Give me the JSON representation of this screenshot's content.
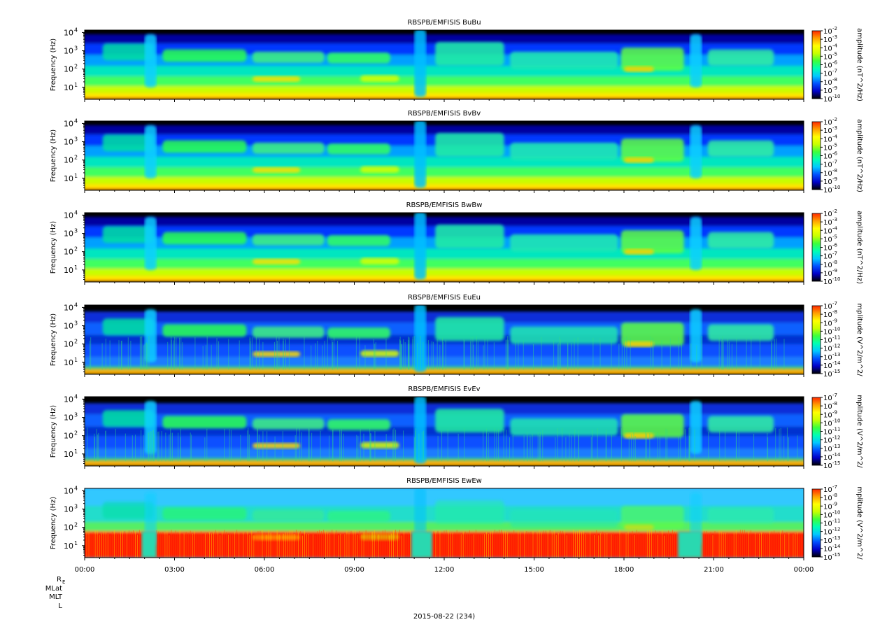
{
  "chart_data": {
    "type": "heatmap",
    "date_label": "2015-08-22 (234)",
    "x_axis": {
      "ticks": [
        "00:00",
        "03:00",
        "06:00",
        "09:00",
        "12:00",
        "15:00",
        "18:00",
        "21:00",
        "00:00"
      ],
      "range_hours": [
        0,
        24
      ],
      "ephemeris_labels": [
        "R",
        "E",
        "MLat",
        "MLT",
        "L"
      ]
    },
    "panels": [
      {
        "title": "RBSPB/EMFISIS  BuBu",
        "ylabel": "Frequency (Hz)",
        "yscale": "log",
        "yticks": [
          "10",
          "10",
          "10",
          "10"
        ],
        "ytick_exponents": [
          "1",
          "2",
          "3",
          "4"
        ],
        "colorbar_label": "amplitude (nT^2/Hz)",
        "colorbar_ticks": [
          "10",
          "10",
          "10",
          "10",
          "10",
          "10",
          "10",
          "10",
          "10"
        ],
        "colorbar_exponents": [
          "-2",
          "-3",
          "-4",
          "-5",
          "-6",
          "-7",
          "-8",
          "-9",
          "-10"
        ]
      },
      {
        "title": "RBSPB/EMFISIS  BvBv",
        "ylabel": "Frequency (Hz)",
        "yscale": "log",
        "yticks": [
          "10",
          "10",
          "10",
          "10"
        ],
        "ytick_exponents": [
          "1",
          "2",
          "3",
          "4"
        ],
        "colorbar_label": "amplitude (nT^2/Hz)",
        "colorbar_ticks": [
          "10",
          "10",
          "10",
          "10",
          "10",
          "10",
          "10",
          "10",
          "10"
        ],
        "colorbar_exponents": [
          "-2",
          "-3",
          "-4",
          "-5",
          "-6",
          "-7",
          "-8",
          "-9",
          "-10"
        ]
      },
      {
        "title": "RBSPB/EMFISIS  BwBw",
        "ylabel": "Frequency (Hz)",
        "yscale": "log",
        "yticks": [
          "10",
          "10",
          "10",
          "10"
        ],
        "ytick_exponents": [
          "1",
          "2",
          "3",
          "4"
        ],
        "colorbar_label": "amplitude (nT^2/Hz)",
        "colorbar_ticks": [
          "10",
          "10",
          "10",
          "10",
          "10",
          "10",
          "10",
          "10",
          "10"
        ],
        "colorbar_exponents": [
          "-2",
          "-3",
          "-4",
          "-5",
          "-6",
          "-7",
          "-8",
          "-9",
          "-10"
        ]
      },
      {
        "title": "RBSPB/EMFISIS  EuEu",
        "ylabel": "Frequency (Hz)",
        "yscale": "log",
        "yticks": [
          "10",
          "10",
          "10",
          "10"
        ],
        "ytick_exponents": [
          "1",
          "2",
          "3",
          "4"
        ],
        "colorbar_label": "mplitude (V^2/m^2/",
        "colorbar_ticks": [
          "10",
          "10",
          "10",
          "10",
          "10",
          "10",
          "10",
          "10",
          "10"
        ],
        "colorbar_exponents": [
          "-7",
          "-8",
          "-9",
          "-10",
          "-11",
          "-12",
          "-13",
          "-14",
          "-15"
        ]
      },
      {
        "title": "RBSPB/EMFISIS  EvEv",
        "ylabel": "Frequency (Hz)",
        "yscale": "log",
        "yticks": [
          "10",
          "10",
          "10",
          "10"
        ],
        "ytick_exponents": [
          "1",
          "2",
          "3",
          "4"
        ],
        "colorbar_label": "mplitude (V^2/m^2/",
        "colorbar_ticks": [
          "10",
          "10",
          "10",
          "10",
          "10",
          "10",
          "10",
          "10",
          "10"
        ],
        "colorbar_exponents": [
          "-7",
          "-8",
          "-9",
          "-10",
          "-11",
          "-12",
          "-13",
          "-14",
          "-15"
        ]
      },
      {
        "title": "RBSPB/EMFISIS  EwEw",
        "ylabel": "Frequency (Hz)",
        "yscale": "log",
        "yticks": [
          "10",
          "10",
          "10",
          "10"
        ],
        "ytick_exponents": [
          "1",
          "2",
          "3",
          "4"
        ],
        "colorbar_label": "mplitude (V^2/m^2/",
        "colorbar_ticks": [
          "10",
          "10",
          "10",
          "10",
          "10",
          "10",
          "10",
          "10",
          "10"
        ],
        "colorbar_exponents": [
          "-7",
          "-8",
          "-9",
          "-10",
          "-11",
          "-12",
          "-13",
          "-14",
          "-15"
        ]
      }
    ],
    "colormap": [
      "#000000",
      "#0000c8",
      "#0050ff",
      "#00c8ff",
      "#00ffb4",
      "#3cff3c",
      "#c8ff00",
      "#ffff00",
      "#ffa000",
      "#ff2800"
    ]
  }
}
